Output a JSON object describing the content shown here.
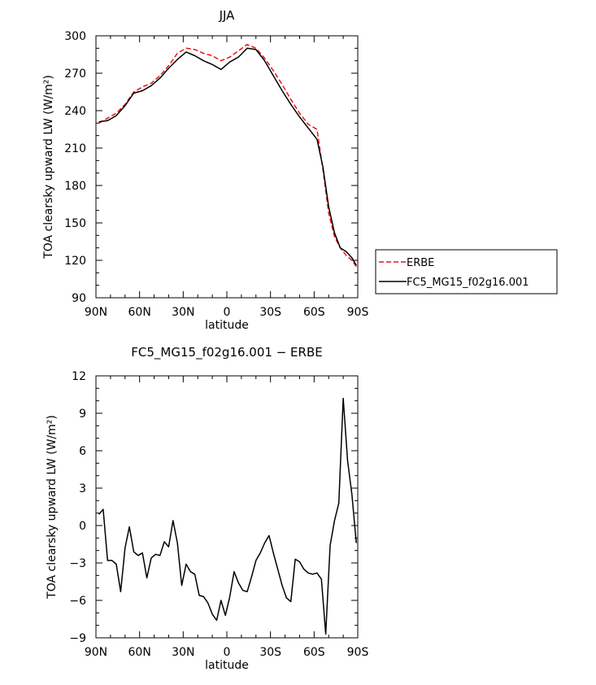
{
  "chart_data": [
    {
      "type": "line",
      "title": "JJA",
      "xlabel": "latitude",
      "ylabel": "TOA clearsky upward LW (W/m²)",
      "xlim": [
        90,
        -90
      ],
      "ylim": [
        90,
        300
      ],
      "xticks": [
        90,
        60,
        30,
        0,
        -30,
        -60,
        -90
      ],
      "xtick_labels": [
        "90N",
        "60N",
        "30N",
        "0",
        "30S",
        "60S",
        "90S"
      ],
      "yticks": [
        90,
        120,
        150,
        180,
        210,
        240,
        270,
        300
      ],
      "ytick_labels": [
        "90",
        "120",
        "150",
        "180",
        "210",
        "240",
        "270",
        "300"
      ],
      "legend_position": "right",
      "series": [
        {
          "name": "ERBE",
          "color": "#e8141a",
          "dash": "dashed",
          "x": [
            88,
            82,
            76,
            70,
            64,
            58,
            52,
            46,
            40,
            34,
            28,
            22,
            16,
            10,
            4,
            -2,
            -8,
            -14,
            -20,
            -26,
            -32,
            -38,
            -44,
            -50,
            -56,
            -62,
            -66,
            -70,
            -74,
            -78,
            -82,
            -86,
            -89
          ],
          "y": [
            230,
            234,
            238,
            245,
            255,
            259,
            262,
            268,
            276,
            286,
            290,
            289,
            286,
            284,
            280,
            283,
            288,
            293,
            290,
            282,
            272,
            261,
            249,
            238,
            229,
            225,
            193,
            158,
            139,
            130,
            124,
            120,
            115
          ]
        },
        {
          "name": "FC5_MG15_f02g16.001",
          "color": "#000000",
          "dash": "solid",
          "x": [
            88,
            82,
            76,
            70,
            64,
            58,
            52,
            46,
            40,
            34,
            28,
            22,
            16,
            10,
            4,
            -2,
            -8,
            -14,
            -20,
            -26,
            -32,
            -38,
            -44,
            -50,
            -56,
            -62,
            -66,
            -70,
            -74,
            -78,
            -82,
            -86,
            -89
          ],
          "y": [
            231,
            232,
            236,
            244,
            254,
            256,
            260,
            266,
            274,
            281,
            287,
            284,
            280,
            277,
            273,
            279,
            283,
            290,
            289,
            280,
            268,
            256,
            245,
            235,
            226,
            217,
            195,
            163,
            142,
            130,
            127,
            122,
            116
          ]
        }
      ]
    },
    {
      "type": "line",
      "title": "FC5_MG15_f02g16.001 − ERBE",
      "xlabel": "latitude",
      "ylabel": "TOA clearsky upward LW (W/m²)",
      "xlim": [
        90,
        -90
      ],
      "ylim": [
        -9,
        12
      ],
      "xticks": [
        90,
        60,
        30,
        0,
        -30,
        -60,
        -90
      ],
      "xtick_labels": [
        "90N",
        "60N",
        "30N",
        "0",
        "30S",
        "60S",
        "90S"
      ],
      "yticks": [
        -9,
        -6,
        -3,
        0,
        3,
        6,
        9,
        12
      ],
      "ytick_labels": [
        "−9",
        "−6",
        "−3",
        "0",
        "3",
        "6",
        "9",
        "12"
      ],
      "series": [
        {
          "color": "#000000",
          "dash": "solid",
          "x": [
            88,
            85,
            82,
            79,
            76,
            73,
            70,
            67,
            64,
            61,
            58,
            55,
            52,
            49,
            46,
            43,
            40,
            37,
            34,
            31,
            28,
            25,
            22,
            19,
            16,
            13,
            10,
            7,
            4,
            1,
            -2,
            -5,
            -8,
            -11,
            -14,
            -17,
            -20,
            -23,
            -26,
            -29,
            -32,
            -35,
            -38,
            -41,
            -44,
            -47,
            -50,
            -53,
            -56,
            -59,
            -62,
            -65,
            -68,
            -71,
            -74,
            -77,
            -80,
            -83,
            -86,
            -89
          ],
          "y": [
            0.9,
            1.3,
            -2.8,
            -2.8,
            -3.1,
            -5.3,
            -1.8,
            -0.1,
            -2.1,
            -2.4,
            -2.2,
            -4.2,
            -2.6,
            -2.3,
            -2.4,
            -1.3,
            -1.7,
            0.4,
            -1.4,
            -4.8,
            -3.1,
            -3.7,
            -3.9,
            -5.6,
            -5.7,
            -6.2,
            -7.1,
            -7.6,
            -6.0,
            -7.2,
            -5.7,
            -3.7,
            -4.6,
            -5.2,
            -5.3,
            -4.1,
            -2.8,
            -2.2,
            -1.4,
            -0.8,
            -2.2,
            -3.5,
            -4.8,
            -5.8,
            -6.1,
            -2.7,
            -2.9,
            -3.5,
            -3.8,
            -3.9,
            -3.8,
            -4.3,
            -8.7,
            -1.6,
            0.4,
            1.8,
            10.2,
            5.2,
            2.5,
            -1.4
          ]
        }
      ]
    }
  ]
}
